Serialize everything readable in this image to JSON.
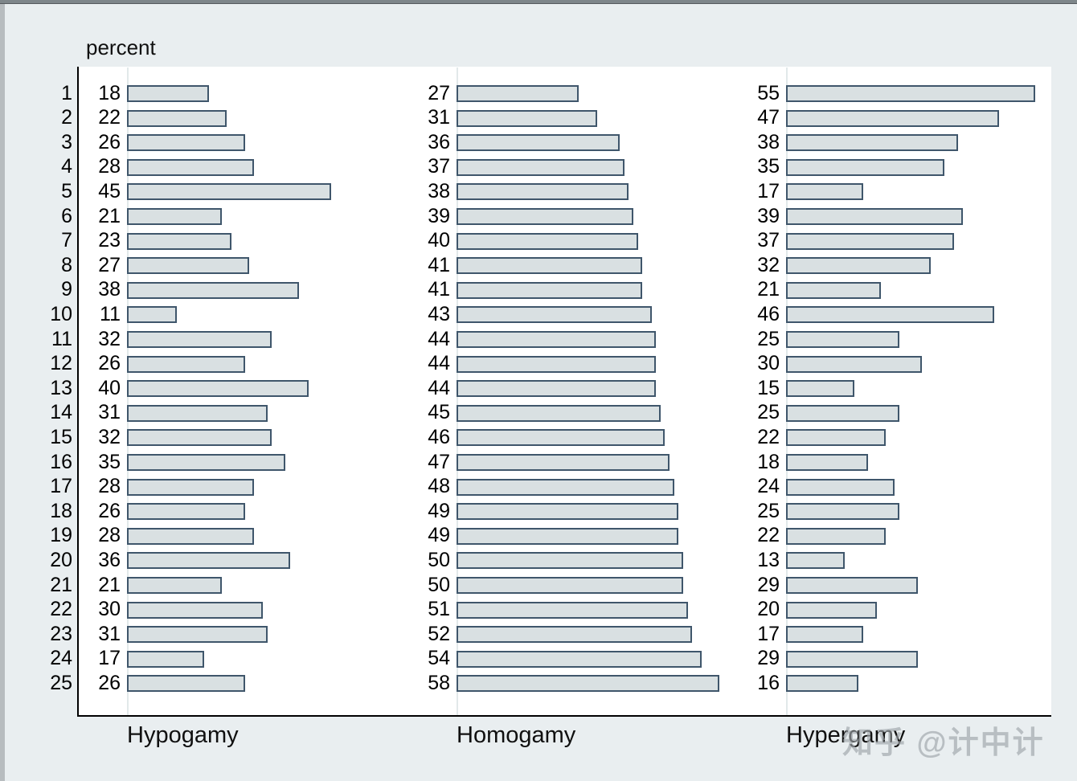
{
  "window": {
    "watermark": "知乎 @计中计"
  },
  "chart_data": {
    "type": "bar",
    "orientation": "horizontal",
    "title": "percent",
    "categories": [
      "1",
      "2",
      "3",
      "4",
      "5",
      "6",
      "7",
      "8",
      "9",
      "10",
      "11",
      "12",
      "13",
      "14",
      "15",
      "16",
      "17",
      "18",
      "19",
      "20",
      "21",
      "22",
      "23",
      "24",
      "25"
    ],
    "series": [
      {
        "name": "Hypogamy",
        "values": [
          18,
          22,
          26,
          28,
          45,
          21,
          23,
          27,
          38,
          11,
          32,
          26,
          40,
          31,
          32,
          35,
          28,
          26,
          28,
          36,
          21,
          30,
          31,
          17,
          26
        ]
      },
      {
        "name": "Homogamy",
        "values": [
          27,
          31,
          36,
          37,
          38,
          39,
          40,
          41,
          41,
          43,
          44,
          44,
          44,
          45,
          46,
          47,
          48,
          49,
          49,
          50,
          50,
          51,
          52,
          54,
          58
        ]
      },
      {
        "name": "Hypergamy",
        "values": [
          55,
          47,
          38,
          35,
          17,
          39,
          37,
          32,
          21,
          46,
          25,
          30,
          15,
          25,
          22,
          18,
          24,
          25,
          22,
          13,
          29,
          20,
          17,
          29,
          16
        ]
      }
    ],
    "value_labels_shown": true,
    "panel_axis_range": [
      0,
      72
    ],
    "grid": false,
    "legend": "none",
    "colors": {
      "bar_fill": "#d9e0e2",
      "bar_border": "#3f566b",
      "background": "#e9eef0",
      "plot_background": "#ffffff",
      "axis_line": "#000000"
    }
  }
}
